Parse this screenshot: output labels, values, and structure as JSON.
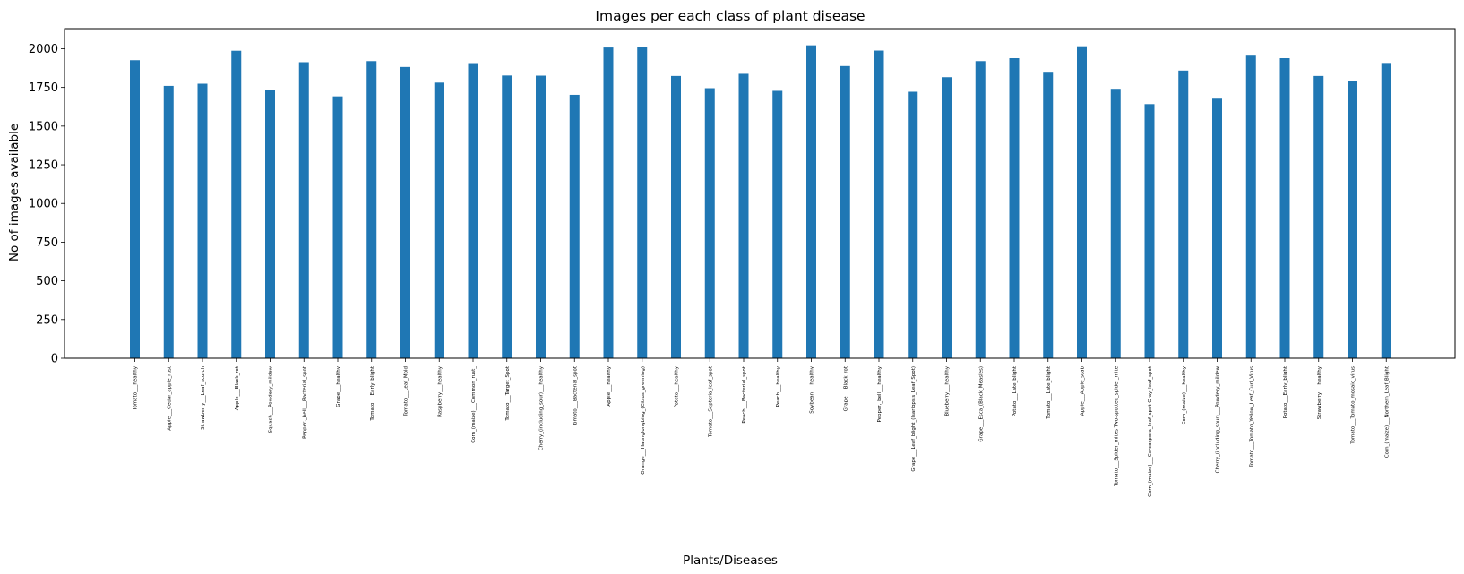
{
  "chart_data": {
    "type": "bar",
    "title": "Images per each class of plant disease",
    "xlabel": "Plants/Diseases",
    "ylabel": "No of images available",
    "ylim": [
      0,
      2130
    ],
    "yticks": [
      0,
      250,
      500,
      750,
      1000,
      1250,
      1500,
      1750,
      2000
    ],
    "grid": false,
    "bar_color": "#1f77b4",
    "categories": [
      "Tomato___healthy",
      "Apple___Cedar_apple_rust",
      "Strawberry___Leaf_scorch",
      "Apple___Black_rot",
      "Squash___Powdery_mildew",
      "Pepper,_bell___Bacterial_spot",
      "Grape___healthy",
      "Tomato___Early_blight",
      "Tomato___Leaf_Mold",
      "Raspberry___healthy",
      "Corn_(maize)___Common_rust_",
      "Tomato___Target_Spot",
      "Cherry_(including_sour)___healthy",
      "Tomato___Bacterial_spot",
      "Apple___healthy",
      "Orange___Haunglongbing_(Citrus_greening)",
      "Potato___healthy",
      "Tomato___Septoria_leaf_spot",
      "Peach___Bacterial_spot",
      "Peach___healthy",
      "Soybean___healthy",
      "Grape___Black_rot",
      "Pepper,_bell___healthy",
      "Grape___Leaf_blight_(Isariopsis_Leaf_Spot)",
      "Blueberry___healthy",
      "Grape___Esca_(Black_Measles)",
      "Potato___Late_blight",
      "Tomato___Late_blight",
      "Apple___Apple_scab",
      "Tomato___Spider_mites Two-spotted_spider_mite",
      "Corn_(maize)___Cercospora_leaf_spot Gray_leaf_spot",
      "Corn_(maize)___healthy",
      "Cherry_(including_sour)___Powdery_mildew",
      "Tomato___Tomato_Yellow_Leaf_Curl_Virus",
      "Potato___Early_blight",
      "Strawberry___healthy",
      "Tomato___Tomato_mosaic_virus",
      "Corn_(maize)___Northern_Leaf_Blight"
    ],
    "values": [
      1926,
      1760,
      1774,
      1987,
      1736,
      1913,
      1692,
      1920,
      1882,
      1781,
      1907,
      1827,
      1826,
      1702,
      2008,
      2010,
      1824,
      1745,
      1838,
      1728,
      2022,
      1888,
      1988,
      1722,
      1816,
      1920,
      1939,
      1851,
      2016,
      1741,
      1642,
      1859,
      1683,
      1961,
      1939,
      1824,
      1790,
      1908
    ]
  }
}
